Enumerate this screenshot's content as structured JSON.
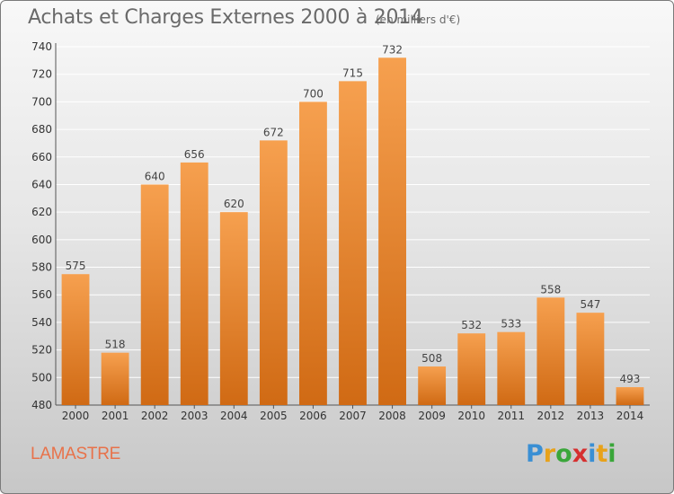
{
  "header": {
    "title": "Achats et Charges Externes 2000 à 2014",
    "unit": "(en milliers d'€)"
  },
  "footer": {
    "commune": "LAMASTRE",
    "logo_letters": [
      "P",
      "r",
      "o",
      "x",
      "i",
      "t",
      "i"
    ],
    "logo_colors": [
      "#3a8fd4",
      "#e8a21a",
      "#3aa63a",
      "#d62f2f",
      "#3a8fd4",
      "#e8a21a",
      "#3aa63a"
    ]
  },
  "colors": {
    "bar_light": "#f6a04f",
    "bar_dark": "#d06a14",
    "grid": "#ffffff"
  },
  "chart_data": {
    "type": "bar",
    "title": "Achats et Charges Externes 2000 à 2014",
    "subtitle": "(en milliers d'€)",
    "xlabel": "",
    "ylabel": "",
    "categories": [
      "2000",
      "2001",
      "2002",
      "2003",
      "2004",
      "2005",
      "2006",
      "2007",
      "2008",
      "2009",
      "2010",
      "2011",
      "2012",
      "2013",
      "2014"
    ],
    "values": [
      575,
      518,
      640,
      656,
      620,
      672,
      700,
      715,
      732,
      508,
      532,
      533,
      558,
      547,
      493
    ],
    "ylim": [
      480,
      740
    ],
    "yticks": [
      480,
      500,
      520,
      540,
      560,
      580,
      600,
      620,
      640,
      660,
      680,
      700,
      720,
      740
    ],
    "grid": true,
    "data_labels": true
  }
}
